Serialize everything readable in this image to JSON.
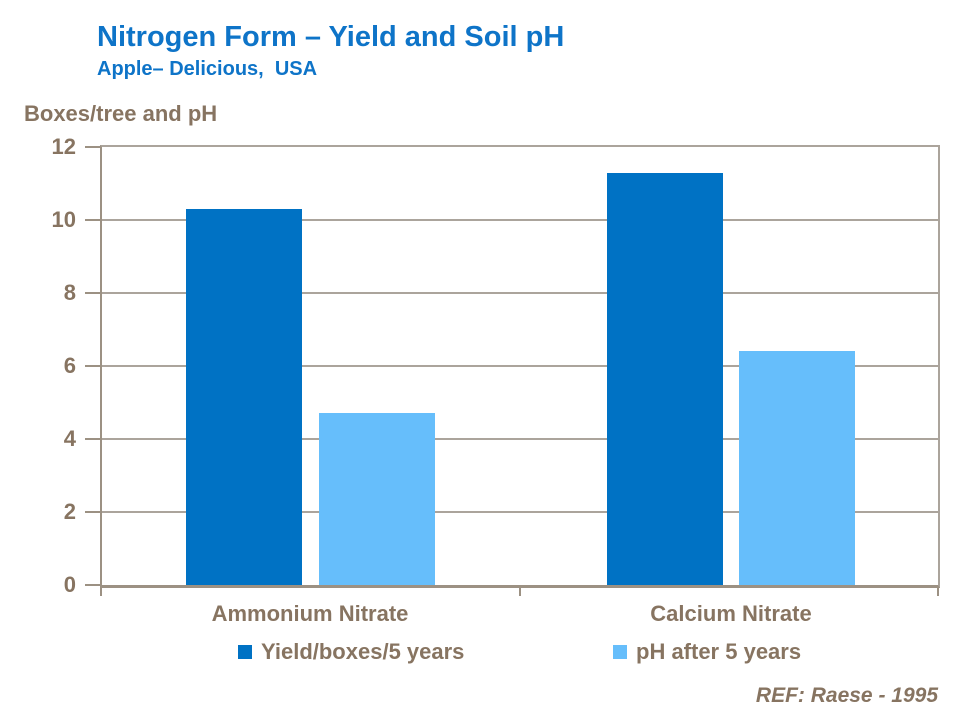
{
  "page": {
    "title": "Nitrogen Form – Yield and Soil pH",
    "subtitle": "Apple– Delicious,  USA",
    "axis_title": "Boxes/tree and pH",
    "reference": "REF: Raese - 1995"
  },
  "colors": {
    "title_blue": "#0E74C8",
    "text_brown": "#877461",
    "gridline": "#ABA49C",
    "axis": "#9C9183",
    "series_yield": "#0072C4",
    "series_ph": "#66BEFB"
  },
  "chart_data": {
    "type": "bar",
    "title": "Nitrogen Form – Yield and Soil pH",
    "subtitle": "Apple– Delicious, USA",
    "ylabel": "Boxes/tree and pH",
    "categories": [
      "Ammonium Nitrate",
      "Calcium Nitrate"
    ],
    "series": [
      {
        "name": "Yield/boxes/5 years",
        "color": "#0072C4",
        "values": [
          10.3,
          11.3
        ]
      },
      {
        "name": "pH after 5 years",
        "color": "#66BEFB",
        "values": [
          4.7,
          6.4
        ]
      }
    ],
    "ylim": [
      0,
      12
    ],
    "yticks": [
      0,
      2,
      4,
      6,
      8,
      10,
      12
    ],
    "grid": true,
    "legend_position": "bottom",
    "annotation": "REF: Raese - 1995"
  }
}
